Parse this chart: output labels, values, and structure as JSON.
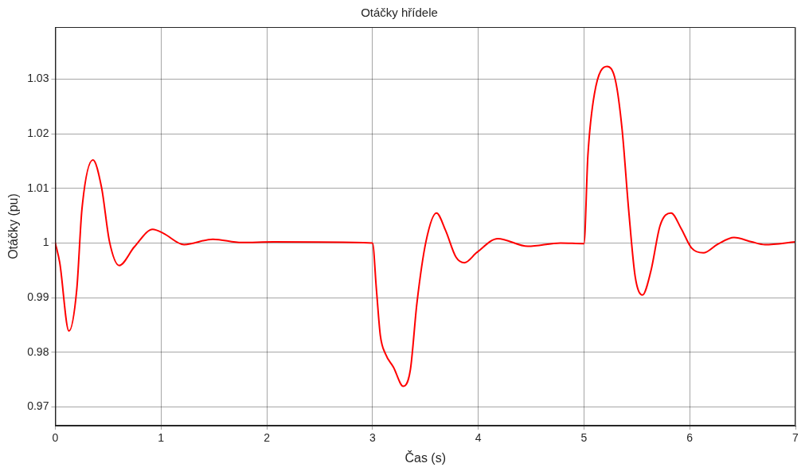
{
  "chart_data": {
    "type": "line",
    "title": "Otáčky hřídele",
    "xlabel": "Čas (s)",
    "ylabel": "Otáčky (pu)",
    "xlim": [
      0,
      7
    ],
    "xticks": [
      0,
      1,
      2,
      3,
      4,
      5,
      6,
      7
    ],
    "ylim": [
      0.9666,
      1.0395
    ],
    "yticks": [
      0.97,
      0.98,
      0.99,
      1,
      1.01,
      1.02,
      1.03
    ],
    "grid": true,
    "legend": false,
    "marker": "none",
    "line_style": "solid",
    "series": [
      {
        "color": "#ff0000",
        "x": [
          0,
          0.042,
          0.129,
          0.203,
          0.252,
          0.356,
          0.438,
          0.512,
          0.604,
          0.748,
          0.921,
          1.02,
          1.218,
          1.49,
          1.762,
          2.06,
          3,
          3.037,
          3.074,
          3.123,
          3.198,
          3.291,
          3.358,
          3.42,
          3.506,
          3.605,
          3.691,
          3.79,
          3.869,
          3.988,
          4.185,
          4.469,
          4.778,
          5,
          5.037,
          5.099,
          5.218,
          5.298,
          5.36,
          5.422,
          5.484,
          5.553,
          5.633,
          5.72,
          5.824,
          5.918,
          6.017,
          6.129,
          6.266,
          6.419,
          6.588,
          6.712,
          7
        ],
        "values": [
          1,
          0.9964,
          0.9839,
          0.9915,
          1.0062,
          1.0152,
          1.0101,
          1.0003,
          0.9959,
          0.9993,
          1.0025,
          1.0018,
          0.9997,
          1.0007,
          1.0001,
          1.0002,
          1,
          0.9915,
          0.9831,
          0.9797,
          0.9773,
          0.9738,
          0.9768,
          0.989,
          1.0003,
          1.0055,
          1.0023,
          0.9974,
          0.9964,
          0.9983,
          1.0008,
          0.9994,
          1,
          0.9999,
          1.016,
          1.0273,
          1.0323,
          1.0297,
          1.0209,
          1.0062,
          0.9939,
          0.9905,
          0.9949,
          1.0032,
          1.0055,
          1.0027,
          0.9991,
          0.9982,
          0.9998,
          1.001,
          1.0002,
          0.9997,
          1.0002
        ]
      }
    ]
  }
}
